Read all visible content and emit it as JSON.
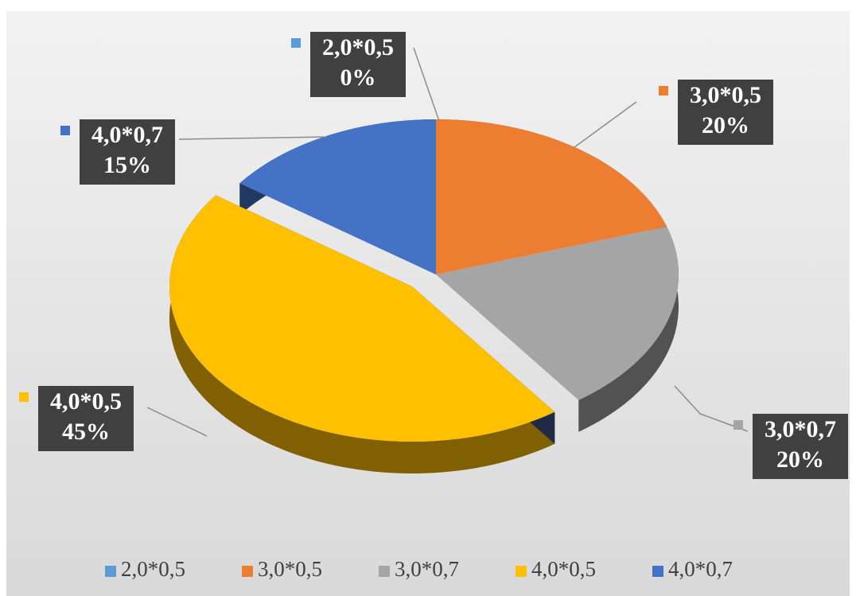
{
  "chart_data": {
    "type": "pie",
    "categories": [
      "2,0*0,5",
      "3,0*0,5",
      "3,0*0,7",
      "4,0*0,5",
      "4,0*0,7"
    ],
    "values": [
      0,
      20,
      20,
      45,
      15
    ],
    "value_labels": [
      "0%",
      "20%",
      "20%",
      "45%",
      "15%"
    ],
    "colors": [
      "#5b9bd5",
      "#ed7d31",
      "#a5a5a5",
      "#ffc000",
      "#4472c4"
    ],
    "legend": "bottom"
  }
}
